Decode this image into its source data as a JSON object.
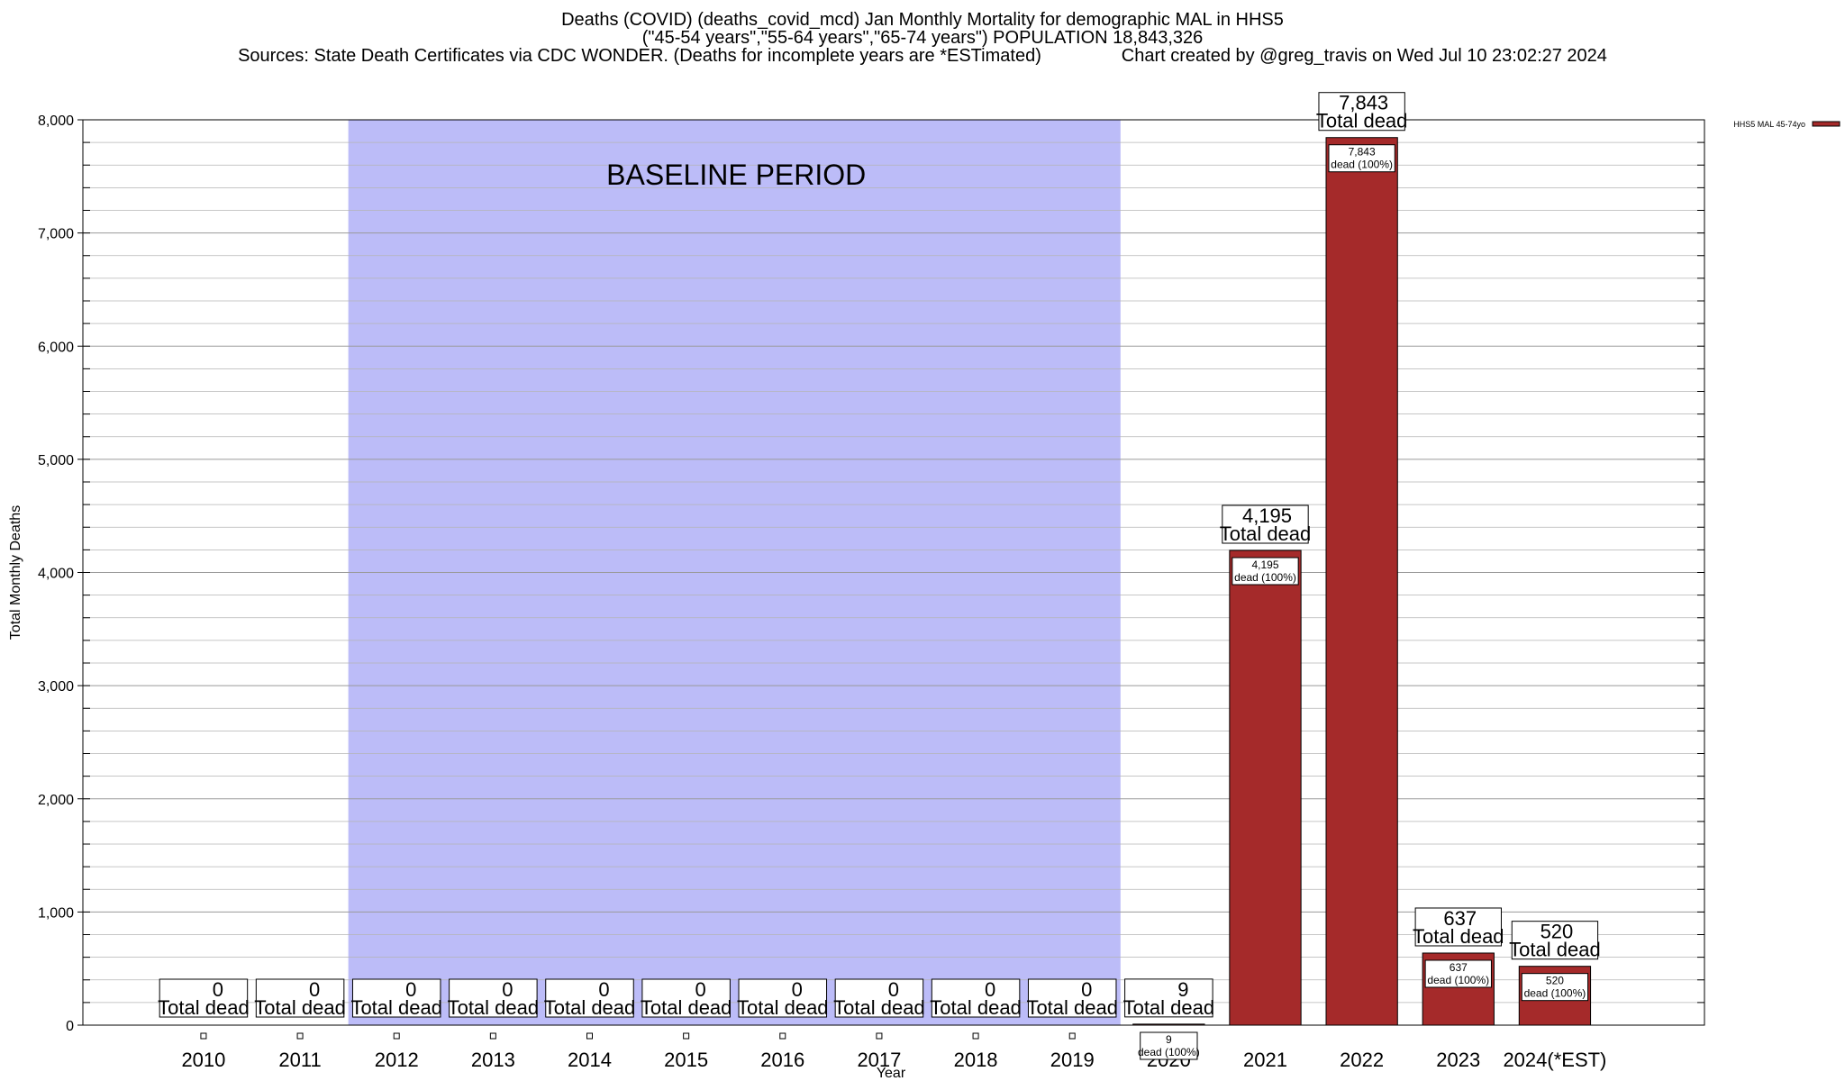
{
  "chart_data": {
    "type": "bar",
    "title": "Deaths (COVID) (deaths_covid_mcd) Jan Monthly Mortality for demographic MAL in HHS5",
    "subtitle": "(\"45-54 years\",\"55-64 years\",\"65-74 years\") POPULATION 18,843,326",
    "sources": "Sources: State Death Certificates via CDC WONDER. (Deaths for incomplete years are *ESTimated)",
    "credit": "Chart created by @greg_travis on Wed Jul 10 23:02:27 2024",
    "xlabel": "Year",
    "ylabel": "Total Monthly Deaths",
    "ylim": [
      0,
      8000
    ],
    "yticks": [
      0,
      1000,
      2000,
      3000,
      4000,
      5000,
      6000,
      7000,
      8000
    ],
    "ytick_labels": [
      "0",
      "1,000",
      "2,000",
      "3,000",
      "4,000",
      "5,000",
      "6,000",
      "7,000",
      "8,000"
    ],
    "ygrid_step": 200,
    "categories": [
      "2010",
      "2011",
      "2012",
      "2013",
      "2014",
      "2015",
      "2016",
      "2017",
      "2018",
      "2019",
      "2020",
      "2021",
      "2022",
      "2023",
      "2024(*EST)"
    ],
    "series": [
      {
        "name": "HHS5 MAL 45-74yo",
        "color": "#a52a2a",
        "values": [
          0,
          0,
          0,
          0,
          0,
          0,
          0,
          0,
          0,
          0,
          9,
          4195,
          7843,
          637,
          520
        ]
      }
    ],
    "total_value_labels": [
      "0",
      "0",
      "0",
      "0",
      "0",
      "0",
      "0",
      "0",
      "0",
      "0",
      "9",
      "4,195",
      "7,843",
      "637",
      "520"
    ],
    "total_label_text": "Total dead",
    "inner_label_text": "dead (100%)",
    "baseline_period": {
      "label": "BASELINE PERIOD",
      "start_category": "2012",
      "end_category": "2019",
      "color": "#bcbcf8"
    },
    "legend": {
      "position": "top-right",
      "label": "HHS5 MAL 45-74yo"
    }
  }
}
